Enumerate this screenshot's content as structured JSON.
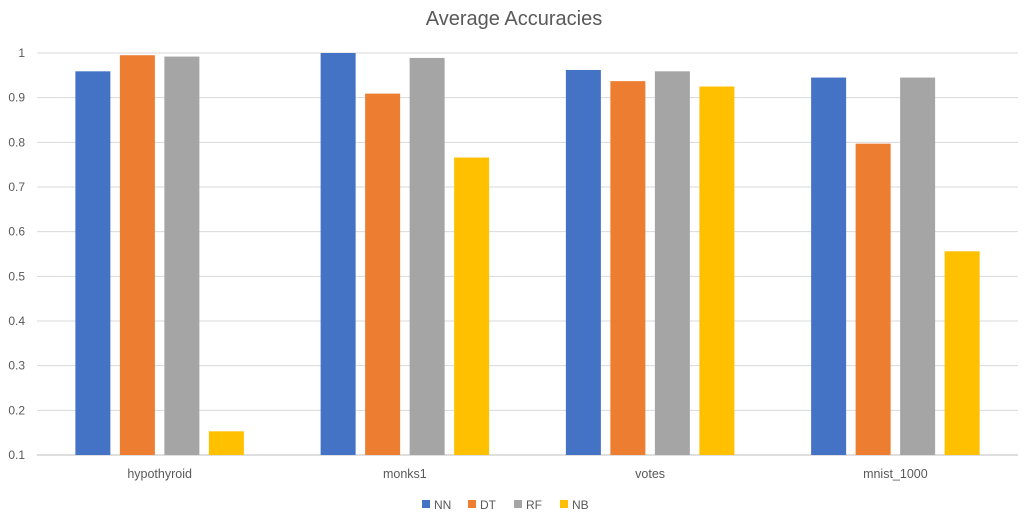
{
  "chart_data": {
    "type": "bar",
    "title": "Average Accuracies",
    "xlabel": "",
    "ylabel": "",
    "categories": [
      "hypothyroid",
      "monks1",
      "votes",
      "mnist_1000"
    ],
    "series": [
      {
        "name": "NN",
        "color": "#4472c4",
        "values": [
          0.959,
          1.0,
          0.962,
          0.945
        ]
      },
      {
        "name": "DT",
        "color": "#ed7d31",
        "values": [
          0.995,
          0.909,
          0.937,
          0.797
        ]
      },
      {
        "name": "RF",
        "color": "#a5a5a5",
        "values": [
          0.992,
          0.989,
          0.959,
          0.945
        ]
      },
      {
        "name": "NB",
        "color": "#ffc000",
        "values": [
          0.153,
          0.766,
          0.925,
          0.556
        ]
      }
    ],
    "ylim": [
      0.1,
      1.0
    ],
    "yticks": [
      "0.1",
      "0.2",
      "0.3",
      "0.4",
      "0.5",
      "0.6",
      "0.7",
      "0.8",
      "0.9",
      "1"
    ],
    "grid": true,
    "legend_position": "bottom-center"
  }
}
